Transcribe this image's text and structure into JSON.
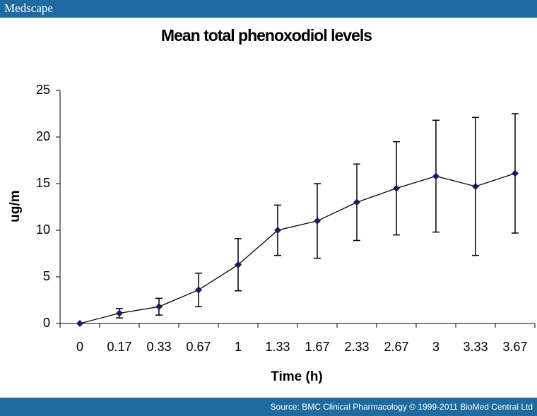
{
  "brand": "Medscape",
  "source": "Source: BMC Clinical Pharmacology © 1999-2011 BioMed Central Ltd",
  "chart_data": {
    "type": "line",
    "title": "Mean total phenoxodiol levels",
    "x_label": "Time (h)",
    "y_label": "ug/m",
    "categories": [
      "0",
      "0.17",
      "0.33",
      "0.67",
      "1",
      "1.33",
      "1.67",
      "2.33",
      "2.67",
      "3",
      "3.33",
      "3.67"
    ],
    "values": [
      0,
      1.1,
      1.8,
      3.6,
      6.3,
      10,
      11,
      13,
      14.5,
      15.8,
      14.7,
      16.1
    ],
    "errors": [
      0,
      0.5,
      0.9,
      1.8,
      2.8,
      2.7,
      4,
      4.1,
      5,
      6,
      7.4,
      6.4
    ],
    "color": "#1a1a66",
    "ylim": [
      0,
      25
    ],
    "yticks": [
      0,
      5,
      10,
      15,
      20,
      25
    ]
  }
}
